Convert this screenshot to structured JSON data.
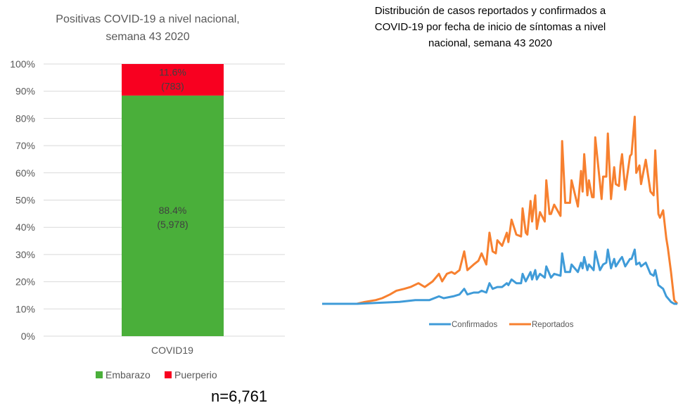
{
  "chart_data": [
    {
      "type": "bar",
      "stacked": true,
      "title": "Positivas COVID-19 a nivel nacional, semana 43 2020",
      "title_lines": [
        "Positivas COVID-19 a nivel nacional,",
        "semana 43 2020"
      ],
      "categories": [
        "COVID19"
      ],
      "series": [
        {
          "name": "Embarazo",
          "values": [
            88.4
          ],
          "count": [
            5978
          ],
          "label_pct": "88.4%",
          "label_count": "(5,978)",
          "color": "#4aaf3a"
        },
        {
          "name": "Puerperio",
          "values": [
            11.6
          ],
          "count": [
            783
          ],
          "label_pct": "11.6%",
          "label_count": "(783)",
          "color": "#f80020"
        }
      ],
      "ylim": [
        0,
        100
      ],
      "yticks": [
        "0%",
        "10%",
        "20%",
        "30%",
        "40%",
        "50%",
        "60%",
        "70%",
        "80%",
        "90%",
        "100%"
      ],
      "grid": true,
      "legend": "bottom",
      "annotation": "n=6,761"
    },
    {
      "type": "line",
      "title": "Distribución de casos reportados y confirmados a COVID-19 por fecha de inicio de síntomas  a nivel nacional, semana 43 2020",
      "title_lines": [
        "Distribución de casos reportados y confirmados a",
        "COVID-19 por fecha de inicio de síntomas  a nivel",
        "nacional, semana 43 2020"
      ],
      "axes_visible": false,
      "grid": false,
      "legend": "bottom",
      "series": [
        {
          "name": "Confirmados",
          "color": "#3f9bd8",
          "points": [
            [
              0,
              0
            ],
            [
              22,
              0
            ],
            [
              34,
              0.5
            ],
            [
              49,
              1
            ],
            [
              59,
              2
            ],
            [
              68,
              2
            ],
            [
              74,
              4
            ],
            [
              77,
              3
            ],
            [
              83,
              4
            ],
            [
              87,
              5
            ],
            [
              90,
              8
            ],
            [
              92,
              5
            ],
            [
              96,
              6
            ],
            [
              99,
              6
            ],
            [
              101,
              7
            ],
            [
              104,
              6
            ],
            [
              106,
              11
            ],
            [
              108,
              8
            ],
            [
              111,
              9
            ],
            [
              114,
              9
            ],
            [
              117,
              11
            ],
            [
              118,
              10
            ],
            [
              120,
              13
            ],
            [
              123,
              11
            ],
            [
              126,
              11
            ],
            [
              127,
              16
            ],
            [
              129,
              12
            ],
            [
              132,
              17
            ],
            [
              133,
              13
            ],
            [
              135,
              18
            ],
            [
              136,
              13
            ],
            [
              138,
              16
            ],
            [
              141,
              14
            ],
            [
              142,
              20
            ],
            [
              145,
              14
            ],
            [
              147,
              16
            ],
            [
              151,
              15
            ],
            [
              152,
              27
            ],
            [
              154,
              17
            ],
            [
              157,
              17
            ],
            [
              158,
              21
            ],
            [
              162,
              17
            ],
            [
              164,
              22
            ],
            [
              165,
              19
            ],
            [
              166,
              25
            ],
            [
              168,
              18
            ],
            [
              169,
              21
            ],
            [
              172,
              18
            ],
            [
              173,
              28
            ],
            [
              176,
              18
            ],
            [
              178,
              21
            ],
            [
              180,
              22
            ],
            [
              181,
              29
            ],
            [
              183,
              19
            ],
            [
              185,
              24
            ],
            [
              186,
              20
            ],
            [
              189,
              24
            ],
            [
              190,
              25
            ],
            [
              192,
              20
            ],
            [
              195,
              24
            ],
            [
              196,
              24
            ],
            [
              198,
              29
            ],
            [
              199,
              21
            ],
            [
              201,
              22
            ],
            [
              202,
              20
            ],
            [
              205,
              22
            ],
            [
              208,
              16
            ],
            [
              210,
              15
            ],
            [
              211,
              18
            ],
            [
              213,
              10
            ],
            [
              216,
              8
            ],
            [
              218,
              4
            ],
            [
              221,
              1
            ],
            [
              223,
              0
            ],
            [
              225,
              0
            ]
          ]
        },
        {
          "name": "Reportados",
          "color": "#f7802f",
          "points": [
            [
              0,
              0
            ],
            [
              22,
              0
            ],
            [
              27,
              1
            ],
            [
              34,
              2
            ],
            [
              38,
              3
            ],
            [
              43,
              5
            ],
            [
              47,
              7
            ],
            [
              52,
              8
            ],
            [
              56,
              9
            ],
            [
              61,
              11
            ],
            [
              65,
              9
            ],
            [
              70,
              12
            ],
            [
              74,
              16
            ],
            [
              76,
              12
            ],
            [
              79,
              16
            ],
            [
              82,
              17
            ],
            [
              84,
              16
            ],
            [
              87,
              18
            ],
            [
              90,
              28
            ],
            [
              92,
              18
            ],
            [
              96,
              21
            ],
            [
              99,
              23
            ],
            [
              101,
              27
            ],
            [
              104,
              21
            ],
            [
              106,
              38
            ],
            [
              108,
              28
            ],
            [
              110,
              27
            ],
            [
              111,
              34
            ],
            [
              114,
              31
            ],
            [
              117,
              38
            ],
            [
              118,
              33
            ],
            [
              120,
              45
            ],
            [
              123,
              37
            ],
            [
              126,
              36
            ],
            [
              127,
              51
            ],
            [
              129,
              38
            ],
            [
              130,
              37
            ],
            [
              132,
              55
            ],
            [
              133,
              44
            ],
            [
              135,
              58
            ],
            [
              136,
              40
            ],
            [
              138,
              49
            ],
            [
              141,
              44
            ],
            [
              142,
              66
            ],
            [
              144,
              48
            ],
            [
              145,
              48
            ],
            [
              147,
              53
            ],
            [
              151,
              47
            ],
            [
              152,
              87
            ],
            [
              154,
              54
            ],
            [
              157,
              54
            ],
            [
              158,
              66
            ],
            [
              162,
              52
            ],
            [
              164,
              71
            ],
            [
              165,
              60
            ],
            [
              166,
              80
            ],
            [
              168,
              58
            ],
            [
              169,
              66
            ],
            [
              171,
              57
            ],
            [
              172,
              57
            ],
            [
              173,
              89
            ],
            [
              177,
              56
            ],
            [
              178,
              68
            ],
            [
              180,
              68
            ],
            [
              181,
              91
            ],
            [
              183,
              56
            ],
            [
              185,
              73
            ],
            [
              186,
              64
            ],
            [
              188,
              63
            ],
            [
              189,
              74
            ],
            [
              190,
              80
            ],
            [
              192,
              61
            ],
            [
              195,
              79
            ],
            [
              196,
              80
            ],
            [
              198,
              100
            ],
            [
              199,
              70
            ],
            [
              201,
              74
            ],
            [
              202,
              64
            ],
            [
              205,
              77
            ],
            [
              208,
              60
            ],
            [
              210,
              58
            ],
            [
              211,
              82
            ],
            [
              213,
              48
            ],
            [
              214,
              46
            ],
            [
              216,
              50
            ],
            [
              218,
              35
            ],
            [
              219,
              30
            ],
            [
              221,
              17
            ],
            [
              223,
              2
            ],
            [
              225,
              0
            ]
          ]
        }
      ]
    }
  ]
}
